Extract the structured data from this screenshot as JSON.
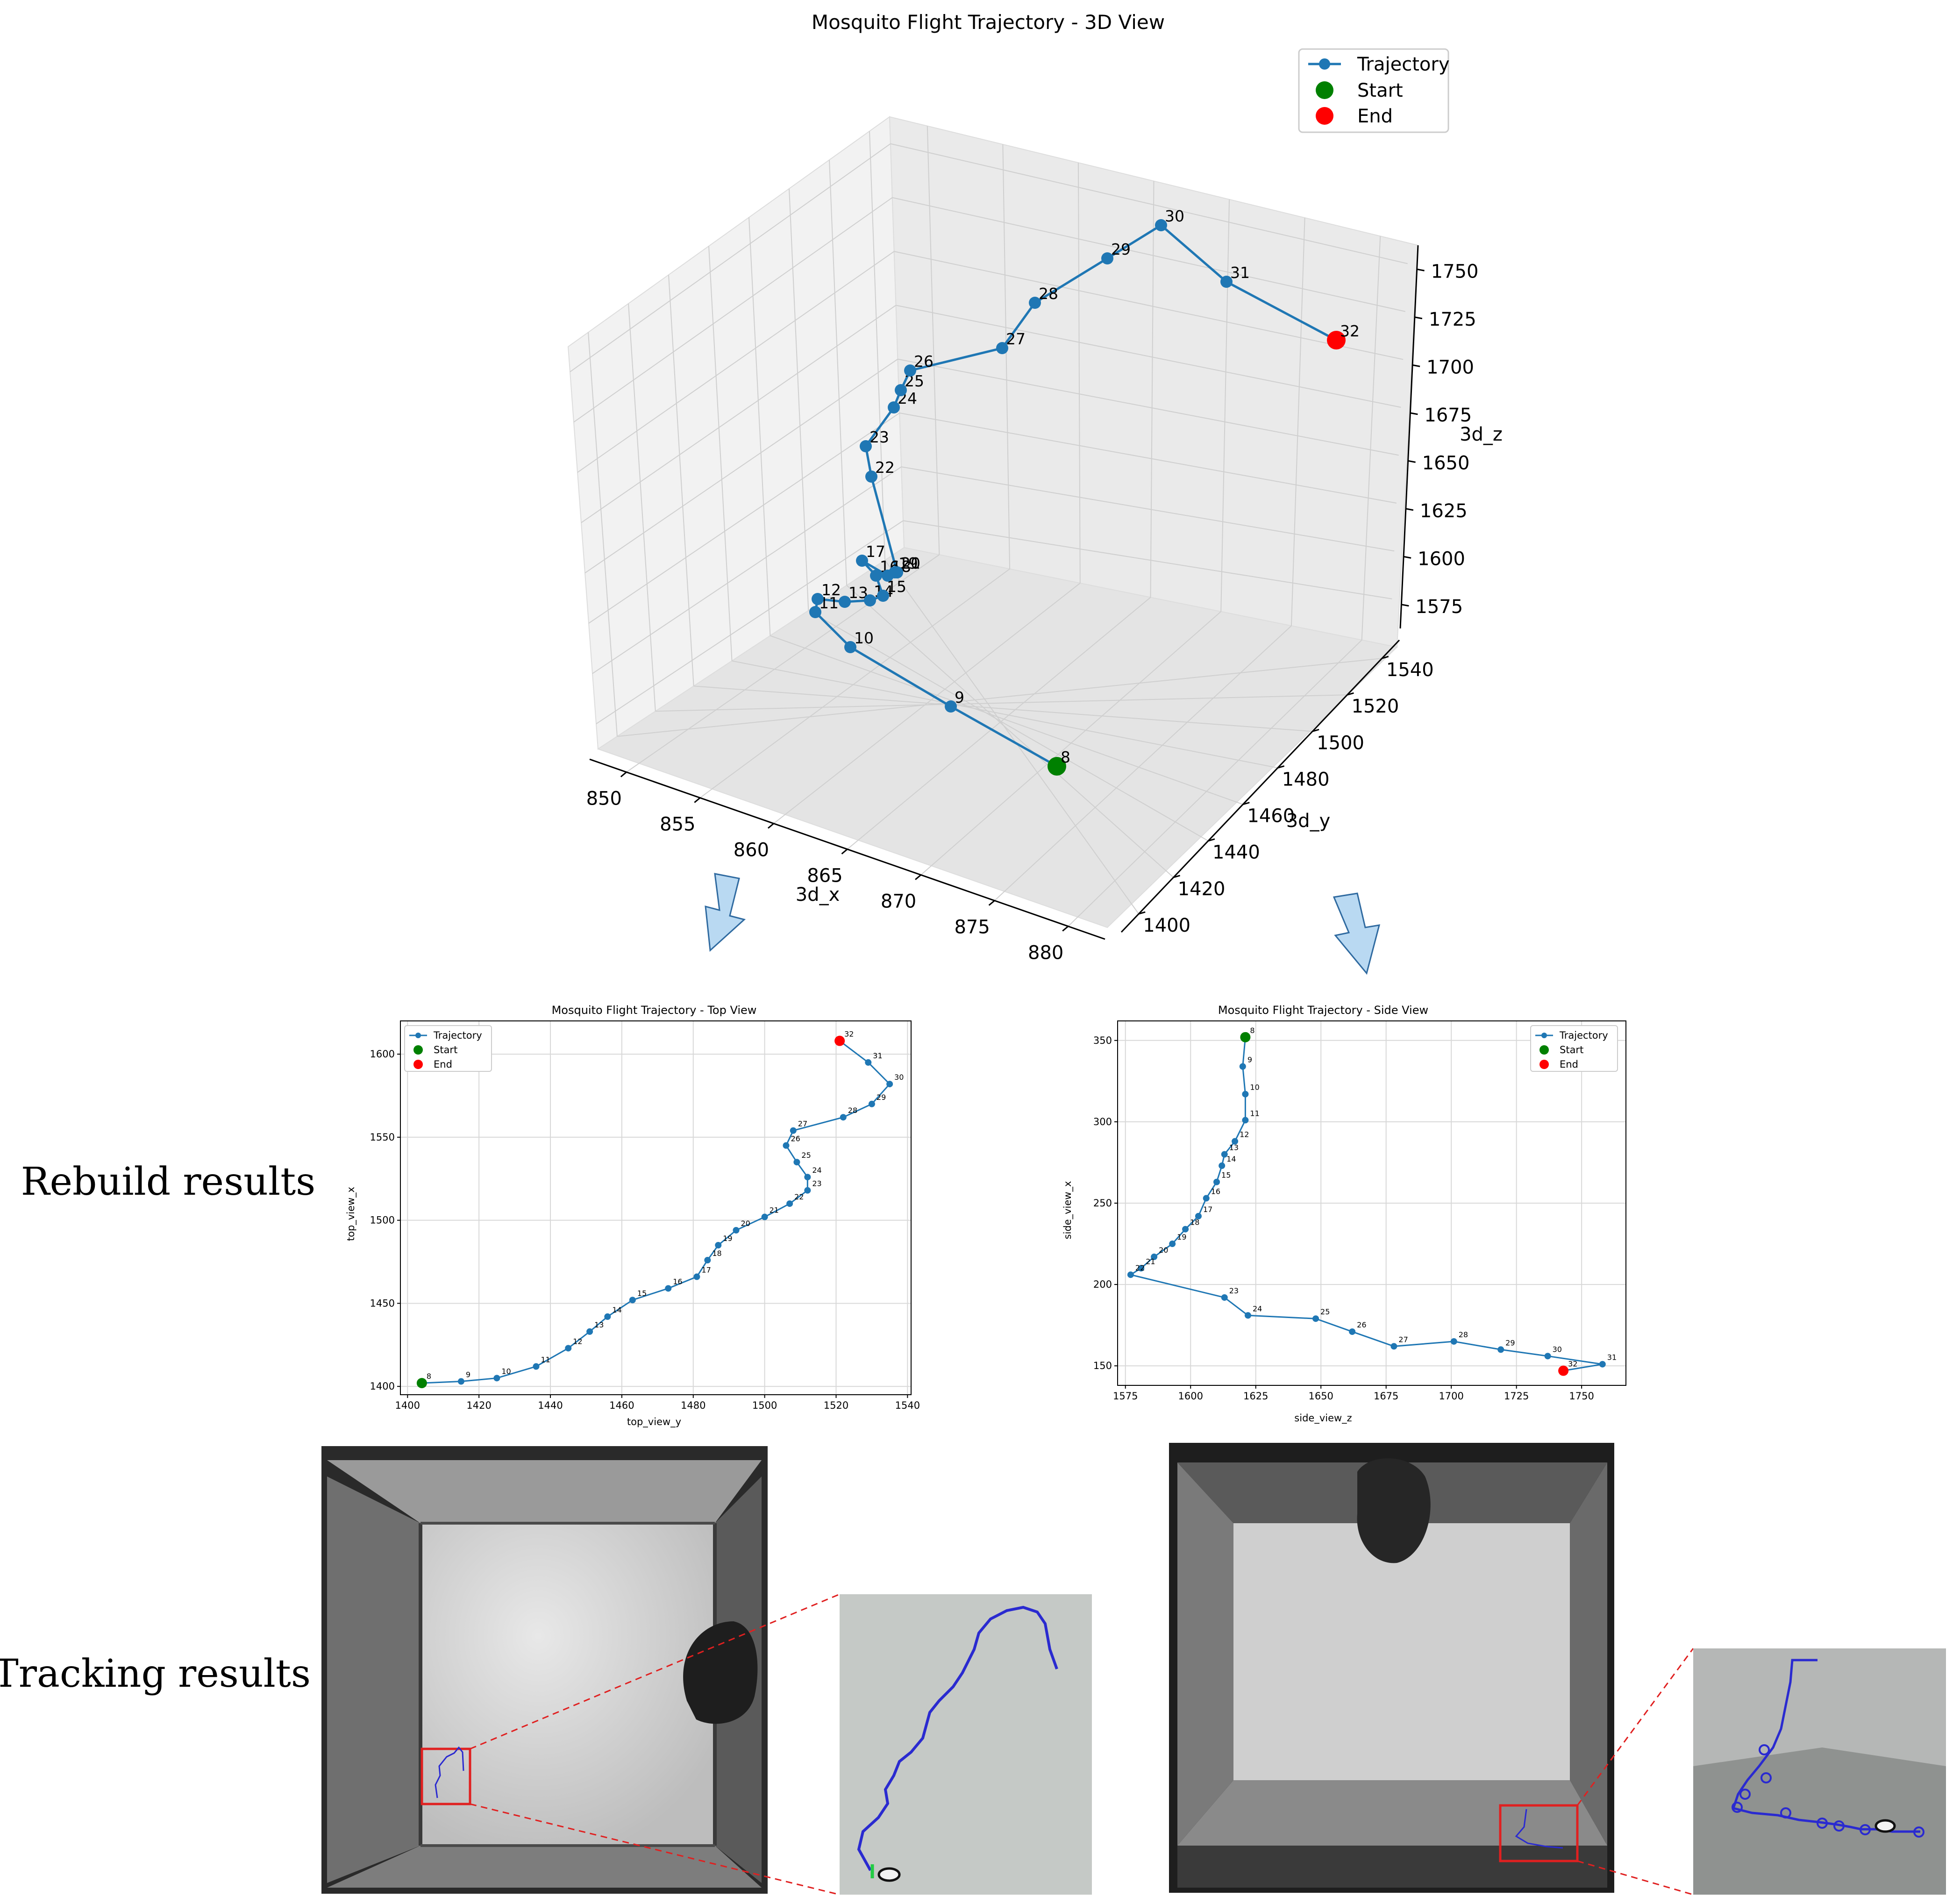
{
  "sections": {
    "rebuild_label": "Rebuild results",
    "tracking_label": "Tracking results"
  },
  "colors": {
    "trajectory": "#1f77b4",
    "start": "#008000",
    "end": "#ff0000",
    "arrow_fill": "#b9d9f2",
    "arrow_stroke": "#2f6aa0",
    "zoom_box": "#e02020",
    "track_line": "#2a2ad0"
  },
  "chart_data": [
    {
      "id": "view3d",
      "type": "line",
      "title": "Mosquito Flight Trajectory - 3D View",
      "xlabel": "3d_x",
      "ylabel": "3d_y",
      "zlabel": "3d_z",
      "x_ticks": [
        "850",
        "855",
        "860",
        "865",
        "870",
        "875",
        "880"
      ],
      "y_ticks": [
        "1400",
        "1420",
        "1440",
        "1460",
        "1480",
        "1500",
        "1520",
        "1540"
      ],
      "z_ticks": [
        "1575",
        "1600",
        "1625",
        "1650",
        "1675",
        "1700",
        "1725",
        "1750"
      ],
      "legend": [
        "Trajectory",
        "Start",
        "End"
      ],
      "legend_position": "top-right",
      "grid": true,
      "points": [
        {
          "label": "8",
          "marker": "start"
        },
        {
          "label": "9"
        },
        {
          "label": "10"
        },
        {
          "label": "11"
        },
        {
          "label": "12"
        },
        {
          "label": "13"
        },
        {
          "label": "14"
        },
        {
          "label": "15"
        },
        {
          "label": "16"
        },
        {
          "label": "17"
        },
        {
          "label": "18"
        },
        {
          "label": "19"
        },
        {
          "label": "20"
        },
        {
          "label": "21"
        },
        {
          "label": "22"
        },
        {
          "label": "23"
        },
        {
          "label": "24"
        },
        {
          "label": "25"
        },
        {
          "label": "26"
        },
        {
          "label": "27"
        },
        {
          "label": "28"
        },
        {
          "label": "29"
        },
        {
          "label": "30"
        },
        {
          "label": "31"
        },
        {
          "label": "32",
          "marker": "end"
        }
      ]
    },
    {
      "id": "topview",
      "type": "line",
      "title": "Mosquito Flight Trajectory - Top View",
      "xlabel": "top_view_y",
      "ylabel": "top_view_x",
      "xlim": [
        1398,
        1541
      ],
      "ylim": [
        1395,
        1620
      ],
      "x_ticks": [
        1400,
        1420,
        1440,
        1460,
        1480,
        1500,
        1520,
        1540
      ],
      "y_ticks": [
        1400,
        1450,
        1500,
        1550,
        1600
      ],
      "legend": [
        "Trajectory",
        "Start",
        "End"
      ],
      "legend_position": "top-left",
      "grid": true,
      "labels": [
        "8",
        "9",
        "10",
        "11",
        "12",
        "13",
        "14",
        "15",
        "16",
        "17",
        "18",
        "19",
        "20",
        "21",
        "22",
        "23",
        "24",
        "25",
        "26",
        "27",
        "28",
        "29",
        "30",
        "31",
        "32"
      ],
      "x": [
        1404,
        1415,
        1425,
        1436,
        1445,
        1451,
        1456,
        1463,
        1473,
        1481,
        1484,
        1487,
        1492,
        1500,
        1507,
        1512,
        1512,
        1509,
        1506,
        1508,
        1522,
        1530,
        1535,
        1529,
        1521
      ],
      "y": [
        1402,
        1403,
        1405,
        1412,
        1423,
        1433,
        1442,
        1452,
        1459,
        1466,
        1476,
        1485,
        1494,
        1502,
        1510,
        1518,
        1526,
        1535,
        1545,
        1554,
        1562,
        1570,
        1582,
        1595,
        1608
      ]
    },
    {
      "id": "sideview",
      "type": "line",
      "title": "Mosquito Flight Trajectory - Side View",
      "xlabel": "side_view_z",
      "ylabel": "side_view_x",
      "xlim": [
        1572,
        1767
      ],
      "ylim": [
        138,
        362
      ],
      "x_ticks": [
        1575,
        1600,
        1625,
        1650,
        1675,
        1700,
        1725,
        1750
      ],
      "y_ticks": [
        150,
        200,
        250,
        300,
        350
      ],
      "legend": [
        "Trajectory",
        "Start",
        "End"
      ],
      "legend_position": "top-right",
      "grid": true,
      "labels": [
        "8",
        "9",
        "10",
        "11",
        "12",
        "13",
        "14",
        "15",
        "16",
        "17",
        "18",
        "19",
        "20",
        "21",
        "22",
        "23",
        "24",
        "25",
        "26",
        "27",
        "28",
        "29",
        "30",
        "31",
        "32"
      ],
      "x": [
        1621,
        1620,
        1621,
        1621,
        1617,
        1613,
        1612,
        1610,
        1606,
        1603,
        1598,
        1593,
        1586,
        1581,
        1577,
        1613,
        1622,
        1648,
        1662,
        1678,
        1701,
        1719,
        1737,
        1758,
        1743
      ],
      "y": [
        352,
        334,
        317,
        301,
        288,
        280,
        273,
        263,
        253,
        242,
        234,
        225,
        217,
        210,
        206,
        192,
        181,
        179,
        171,
        162,
        165,
        160,
        156,
        151,
        147
      ]
    }
  ]
}
